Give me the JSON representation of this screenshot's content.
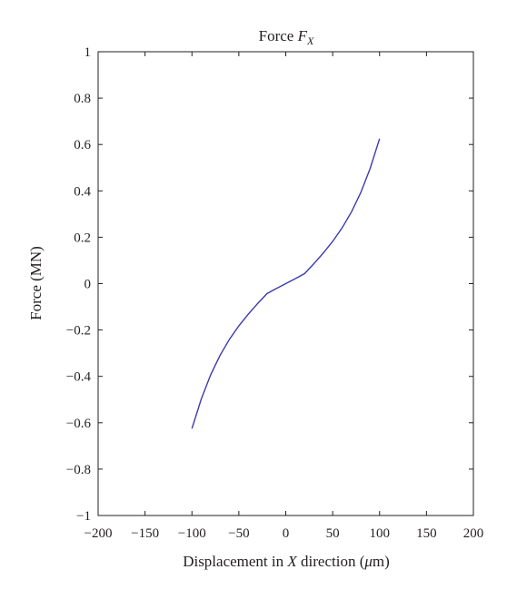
{
  "chart_data": {
    "type": "line",
    "title": {
      "main": "Force ",
      "var": "F",
      "sub": "X"
    },
    "xlabel": {
      "pre": "Displacement in ",
      "var": "X",
      "mid": " direction (",
      "unit_var": "μ",
      "post": "m)"
    },
    "ylabel": "Force (MN)",
    "xlim": [
      -200,
      200
    ],
    "ylim": [
      -1,
      1
    ],
    "xticks": [
      -200,
      -150,
      -100,
      -50,
      0,
      50,
      100,
      150,
      200
    ],
    "yticks": [
      -1,
      -0.8,
      -0.6,
      -0.4,
      -0.2,
      0,
      0.2,
      0.4,
      0.6,
      0.8,
      1
    ],
    "xtick_labels": [
      "−200",
      "−150",
      "−100",
      "−50",
      "0",
      "50",
      "100",
      "150",
      "200"
    ],
    "ytick_labels": [
      "−1",
      "−0.8",
      "−0.6",
      "−0.4",
      "−0.2",
      "0",
      "0.2",
      "0.4",
      "0.6",
      "0.8",
      "1"
    ],
    "grid": false,
    "series": [
      {
        "color": "#3b3bb0",
        "x": [
          -100,
          -90,
          -80,
          -70,
          -60,
          -50,
          -40,
          -30,
          -20,
          -10,
          0,
          10,
          20,
          30,
          40,
          50,
          60,
          70,
          80,
          90,
          100
        ],
        "y": [
          -0.625,
          -0.497,
          -0.393,
          -0.309,
          -0.24,
          -0.182,
          -0.132,
          -0.086,
          -0.043,
          -0.021,
          0,
          0.021,
          0.043,
          0.086,
          0.132,
          0.182,
          0.24,
          0.309,
          0.393,
          0.497,
          0.625
        ]
      }
    ]
  }
}
